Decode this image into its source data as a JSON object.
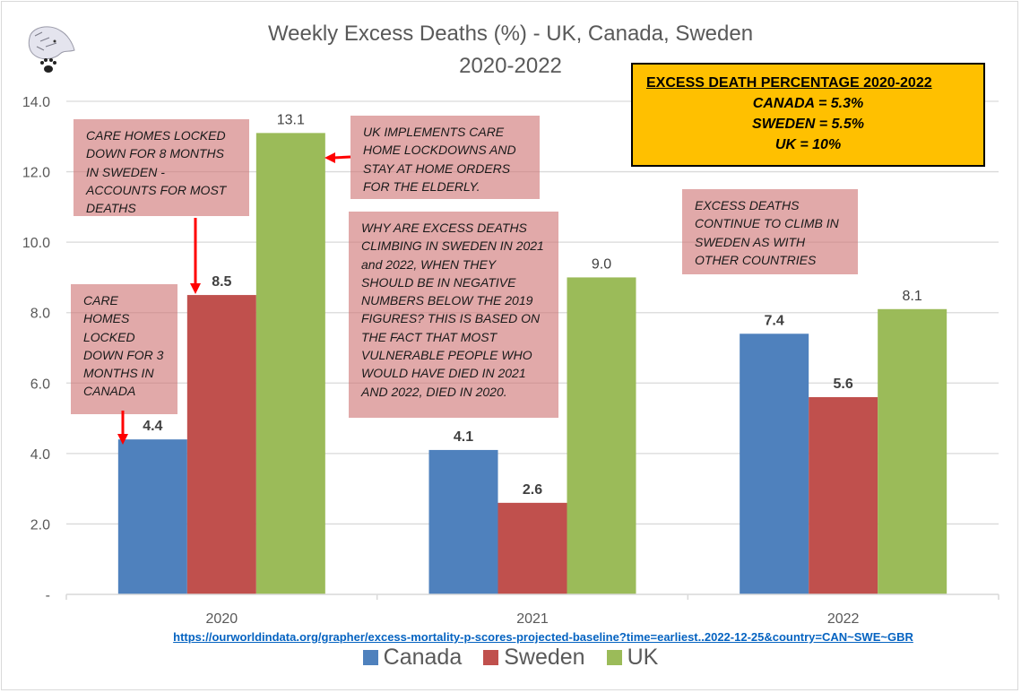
{
  "chart_data": {
    "type": "bar",
    "title": "Weekly Excess Deaths (%) -  UK, Canada, Sweden",
    "subtitle": "2020-2022",
    "xlabel": "",
    "ylabel": "",
    "categories": [
      "2020",
      "2021",
      "2022"
    ],
    "series": [
      {
        "name": "Canada",
        "color": "#4f81bd",
        "values": [
          4.4,
          4.1,
          7.4
        ],
        "labels": [
          "4.4",
          "4.1",
          "7.4"
        ],
        "label_bold": true
      },
      {
        "name": "Sweden",
        "color": "#c0504d",
        "values": [
          8.5,
          2.6,
          5.6
        ],
        "labels": [
          "8.5",
          "2.6",
          "5.6"
        ],
        "label_bold": true
      },
      {
        "name": "UK",
        "color": "#9bbb59",
        "values": [
          13.1,
          9.0,
          8.1
        ],
        "labels": [
          "13.1",
          "9.0",
          "8.1"
        ],
        "label_bold": false
      }
    ],
    "ylim": [
      0,
      14
    ],
    "yticks": [
      0,
      2,
      4,
      6,
      8,
      10,
      12,
      14
    ],
    "ytick_labels": [
      "-",
      "2.0",
      "4.0",
      "6.0",
      "8.0",
      "10.0",
      "12.0",
      "14.0"
    ],
    "grid": true,
    "legend_position": "bottom"
  },
  "annotations": {
    "sweden_care_homes": "CARE HOMES LOCKED DOWN FOR 8 MONTHS IN SWEDEN - ACCOUNTS FOR MOST DEATHS",
    "canada_care_homes": "CARE HOMES LOCKED DOWN FOR 3 MONTHS IN CANADA",
    "uk_lockdowns": "UK IMPLEMENTS CARE HOME LOCKDOWNS AND STAY AT HOME ORDERS FOR THE ELDERLY.",
    "why_climbing": "WHY ARE EXCESS DEATHS CLIMBING IN SWEDEN IN 2021 and 2022, WHEN THEY SHOULD BE IN NEGATIVE NUMBERS BELOW THE 2019 FIGURES? THIS IS BASED ON THE FACT THAT MOST VULNERABLE PEOPLE WHO WOULD HAVE DIED IN 2021 AND 2022, DIED IN 2020.",
    "continue_climb": "EXCESS DEATHS CONTINUE TO CLIMB IN SWEDEN AS WITH OTHER COUNTRIES"
  },
  "summary_box": {
    "heading": "EXCESS DEATH PERCENTAGE 2020-2022",
    "rows": [
      "CANADA = 5.3%",
      "SWEDEN = 5.5%",
      "UK = 10%"
    ],
    "background": "#ffc000"
  },
  "source_url": "https://ourworldindata.org/grapher/excess-mortality-p-scores-projected-baseline?time=earliest..2022-12-25&country=CAN~SWE~GBR",
  "logo": "wolf-with-paw-print"
}
